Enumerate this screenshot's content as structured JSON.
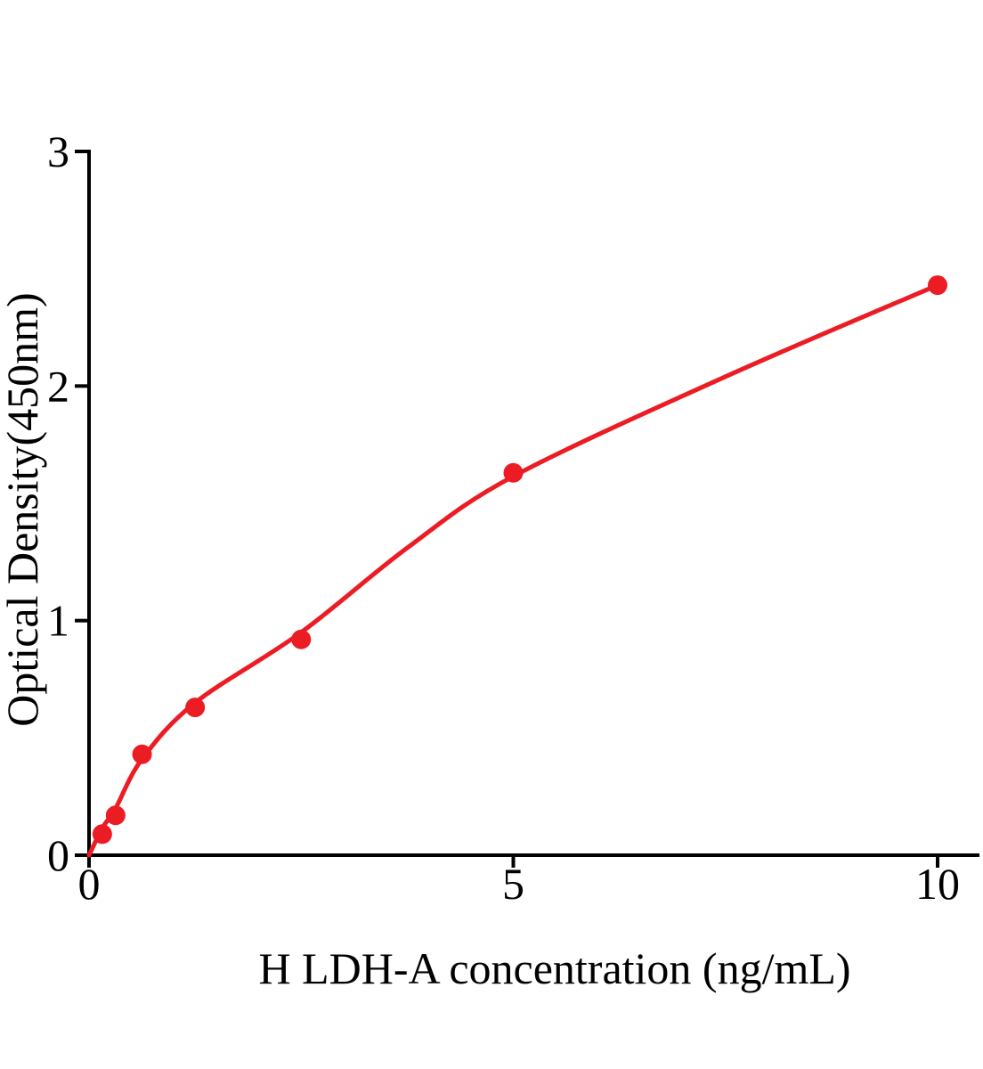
{
  "figure": {
    "background_color": "#ffffff",
    "axis_color": "#000000"
  },
  "chart_data": {
    "type": "scatter",
    "title": "",
    "xlabel": "H LDH-A concentration (ng/mL)",
    "ylabel": "Optical Density(450nm)",
    "xlim": [
      0,
      10.5
    ],
    "ylim": [
      0,
      3
    ],
    "x_ticks": [
      0,
      5,
      10
    ],
    "y_ticks": [
      0,
      1,
      2,
      3
    ],
    "grid": false,
    "legend": "none",
    "marker_color": "#ec1c24",
    "line_color": "#ec1c24",
    "marker_radius": 11,
    "points": [
      {
        "x": 0.156,
        "y": 0.09
      },
      {
        "x": 0.313,
        "y": 0.17
      },
      {
        "x": 0.625,
        "y": 0.43
      },
      {
        "x": 1.25,
        "y": 0.63
      },
      {
        "x": 2.5,
        "y": 0.92
      },
      {
        "x": 5,
        "y": 1.63
      },
      {
        "x": 10,
        "y": 2.43
      }
    ],
    "fit_curve": [
      [
        0,
        0
      ],
      [
        0.156,
        0.115
      ],
      [
        0.313,
        0.2
      ],
      [
        0.625,
        0.41
      ],
      [
        1.25,
        0.65
      ],
      [
        2.5,
        0.95
      ],
      [
        3.75,
        1.31
      ],
      [
        5,
        1.615
      ],
      [
        7.5,
        2.04
      ],
      [
        10,
        2.43
      ]
    ]
  }
}
